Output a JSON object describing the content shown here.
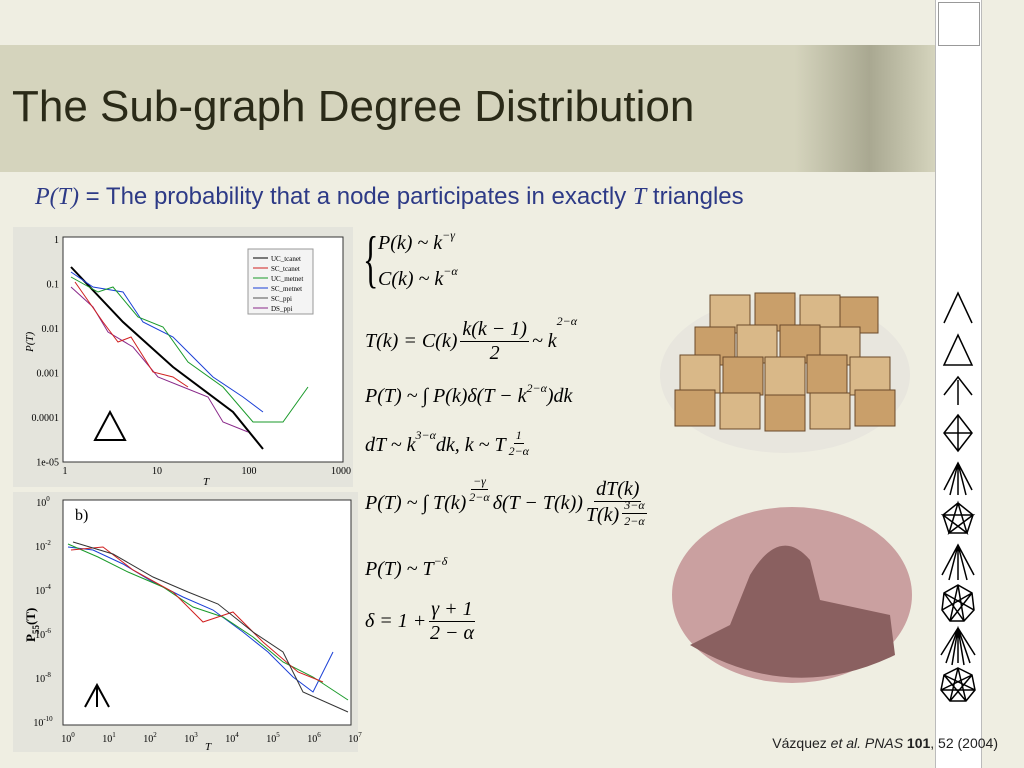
{
  "header": {
    "title": "The Sub-graph Degree Distribution"
  },
  "subtitle": {
    "var1": "P(T)",
    "text1": " = The probability that a node participates in exactly ",
    "var2": "T",
    "text2": " triangles"
  },
  "plot_a": {
    "yticks": [
      "1",
      "0.1",
      "0.01",
      "0.001",
      "0.0001",
      "1e-05"
    ],
    "xticks": [
      "1",
      "10",
      "100",
      "1000"
    ],
    "xlabel": "T",
    "ylabel": "P(T)",
    "legend": [
      "UC_tcanet",
      "SC_tcanet",
      "UC_metnet",
      "SC_metnet",
      "SC_ppi",
      "DS_ppi"
    ]
  },
  "plot_b": {
    "label": "b)",
    "ylabel": "P",
    "ylabel_sub": "55",
    "ylabel_end": "(T)",
    "xlabel": "T",
    "base": "10",
    "yexp": [
      "0",
      "-2",
      "-4",
      "-6",
      "-8",
      "-10"
    ],
    "xexp": [
      "0",
      "1",
      "2",
      "3",
      "4",
      "5",
      "6",
      "7"
    ]
  },
  "equations": [
    [
      {
        "t": "P(k) ~ k"
      },
      {
        "sup": [
          {
            "t": "−γ"
          }
        ]
      }
    ],
    [
      {
        "t": "C(k) ~ k"
      },
      {
        "sup": [
          {
            "t": "−α"
          }
        ]
      }
    ],
    [
      {
        "t": "T(k) = C(k)"
      },
      {
        "num": [
          {
            "t": "k(k − 1)"
          }
        ],
        "den": [
          {
            "t": "2"
          }
        ]
      },
      {
        "t": " ~ k"
      },
      {
        "sup": [
          {
            "t": "2−α"
          }
        ]
      }
    ],
    [
      {
        "t": "P(T) ~ ∫ P(k)δ(T − k"
      },
      {
        "sup": [
          {
            "t": "2−α"
          }
        ]
      },
      {
        "t": ")dk"
      }
    ],
    [
      {
        "t": "dT ~ k"
      },
      {
        "sup": [
          {
            "t": "3−α"
          }
        ]
      },
      {
        "t": "dk,  k ~ T"
      },
      {
        "sup": [
          {
            "num": [
              {
                "t": "1"
              }
            ],
            "den": [
              {
                "t": "2−α"
              }
            ]
          }
        ]
      }
    ],
    [
      {
        "t": "P(T) ~ ∫ T(k)"
      },
      {
        "sup": [
          {
            "num": [
              {
                "t": "−γ"
              }
            ],
            "den": [
              {
                "t": "2−α"
              }
            ]
          }
        ]
      },
      {
        "t": "δ(T − T(k))"
      },
      {
        "num": [
          {
            "t": "dT(k)"
          }
        ],
        "den": [
          {
            "t": "T(k)"
          },
          {
            "sup": [
              {
                "num": [
                  {
                    "t": "3−α"
                  }
                ],
                "den": [
                  {
                    "t": "2−α"
                  }
                ]
              }
            ]
          }
        ]
      }
    ],
    [
      {
        "t": "P(T) ~ T"
      },
      {
        "sup": [
          {
            "t": "−δ"
          }
        ]
      }
    ],
    [
      {
        "t": "δ = 1 + "
      },
      {
        "num": [
          {
            "t": "γ + 1"
          }
        ],
        "den": [
          {
            "t": "2 − α"
          }
        ]
      }
    ]
  ],
  "citation": {
    "author": "Vázquez ",
    "etal": "et al.",
    "journal": " PNAS ",
    "volume": "101",
    "rest": ", 52 (2004)"
  }
}
